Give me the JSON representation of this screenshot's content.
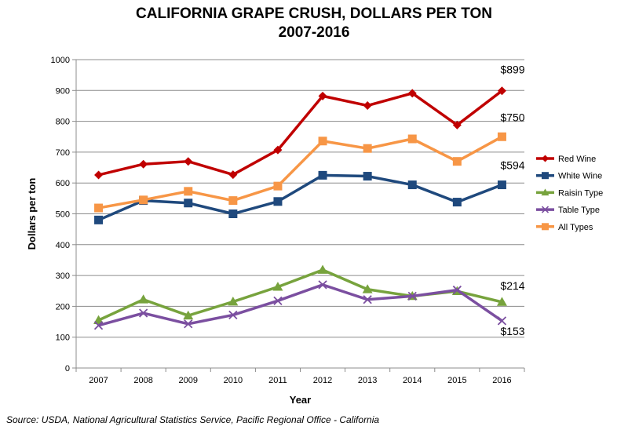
{
  "chart_data": {
    "type": "line",
    "title": "CALIFORNIA GRAPE CRUSH, DOLLARS PER TON",
    "subtitle": "2007-2016",
    "xlabel": "Year",
    "ylabel": "Dollars per ton",
    "ylim": [
      0,
      1000
    ],
    "ytick_step": 100,
    "grid": true,
    "legend_position": "right",
    "categories": [
      "2007",
      "2008",
      "2009",
      "2010",
      "2011",
      "2012",
      "2013",
      "2014",
      "2015",
      "2016"
    ],
    "series": [
      {
        "name": "Red Wine",
        "color": "#c00000",
        "marker": "diamond",
        "values": [
          626,
          661,
          670,
          627,
          707,
          882,
          851,
          891,
          788,
          899
        ],
        "end_label": "$899"
      },
      {
        "name": "White Wine",
        "color": "#1f497d",
        "marker": "square",
        "values": [
          480,
          543,
          535,
          500,
          540,
          625,
          622,
          594,
          538,
          594
        ],
        "end_label": "$594"
      },
      {
        "name": "Raisin Type",
        "color": "#77a33d",
        "marker": "triangle",
        "values": [
          155,
          222,
          170,
          215,
          263,
          318,
          255,
          233,
          249,
          214
        ],
        "end_label": "$214"
      },
      {
        "name": "Table Type",
        "color": "#7b4fa0",
        "marker": "x",
        "values": [
          138,
          178,
          143,
          172,
          218,
          270,
          222,
          233,
          253,
          153
        ],
        "end_label": "$153"
      },
      {
        "name": "All Types",
        "color": "#f79646",
        "marker": "square",
        "values": [
          519,
          545,
          573,
          543,
          590,
          736,
          712,
          743,
          670,
          750
        ],
        "end_label": "$750"
      }
    ]
  },
  "source": "Source: USDA, National Agricultural Statistics Service, Pacific Regional Office - California"
}
